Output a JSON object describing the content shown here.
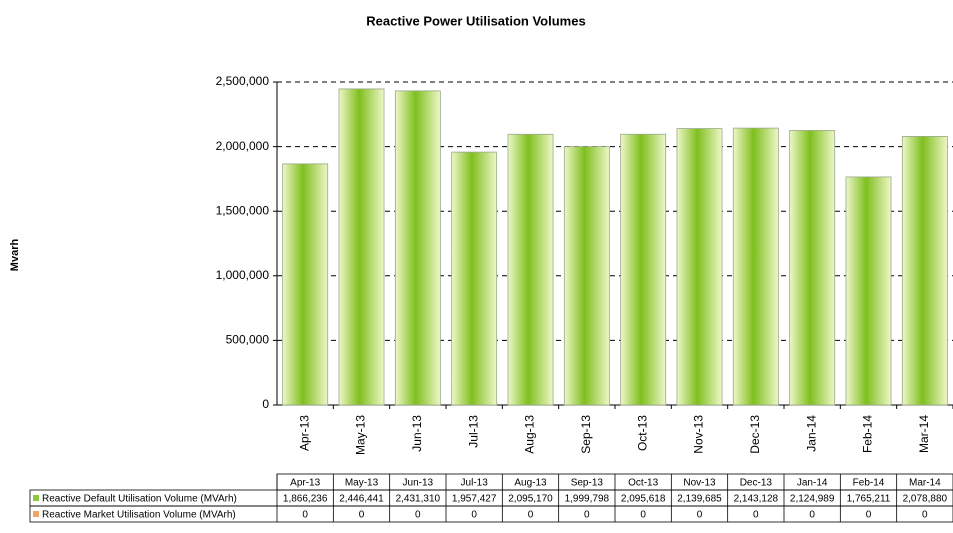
{
  "chart_data": {
    "type": "bar",
    "title": "Reactive Power Utilisation Volumes",
    "y_label": "Mvarh",
    "categories": [
      "Apr-13",
      "May-13",
      "Jun-13",
      "Jul-13",
      "Aug-13",
      "Sep-13",
      "Oct-13",
      "Nov-13",
      "Dec-13",
      "Jan-14",
      "Feb-14",
      "Mar-14"
    ],
    "series": [
      {
        "name": "Reactive Default Utilisation Volume (MVArh)",
        "color": "#8cc63f",
        "values": [
          1866236,
          2446441,
          2431310,
          1957427,
          2095170,
          1999798,
          2095618,
          2139685,
          2143128,
          2124989,
          1765211,
          2078880
        ],
        "value_labels": [
          "1,866,236",
          "2,446,441",
          "2,431,310",
          "1,957,427",
          "2,095,170",
          "1,999,798",
          "2,095,618",
          "2,139,685",
          "2,143,128",
          "2,124,989",
          "1,765,211",
          "2,078,880"
        ]
      },
      {
        "name": "Reactive Market Utilisation Volume (MVArh)",
        "color": "#f4a460",
        "values": [
          0,
          0,
          0,
          0,
          0,
          0,
          0,
          0,
          0,
          0,
          0,
          0
        ]
      }
    ],
    "ylim": [
      0,
      2500000
    ],
    "yticks": [
      0,
      {
        "value": 500000,
        "label": "500,000"
      },
      {
        "value": 1000000,
        "label": "1,000,000"
      },
      {
        "value": 1500000,
        "label": "1,500,000"
      },
      {
        "value": 2000000,
        "label": "2,000,000"
      },
      {
        "value": 2500000,
        "label": "2,500,000"
      }
    ],
    "grid": true,
    "data_table": true
  }
}
